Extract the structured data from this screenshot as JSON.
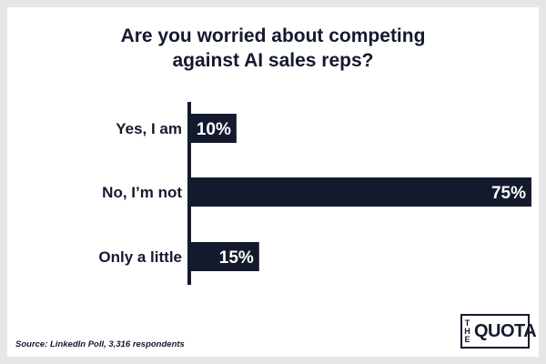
{
  "chart_data": {
    "type": "bar",
    "orientation": "horizontal",
    "title_lines": [
      "Are you worried about competing",
      "against AI sales reps?"
    ],
    "categories": [
      "Yes, I am",
      "No, I’m not",
      "Only a little"
    ],
    "values": [
      10,
      75,
      15
    ],
    "value_labels": [
      "10%",
      "75%",
      "15%"
    ],
    "xlim": [
      0,
      75
    ],
    "grid": false,
    "legend": "none",
    "bar_color": "#141a2e",
    "text_color": "#141a2e"
  },
  "source": "Source: LinkedIn Poll, 3,316 respondents",
  "logo": {
    "the": "THE",
    "quota": "QUOTA"
  },
  "colors": {
    "background": "#e6e6e6",
    "card": "#ffffff",
    "ink": "#141a2e"
  }
}
